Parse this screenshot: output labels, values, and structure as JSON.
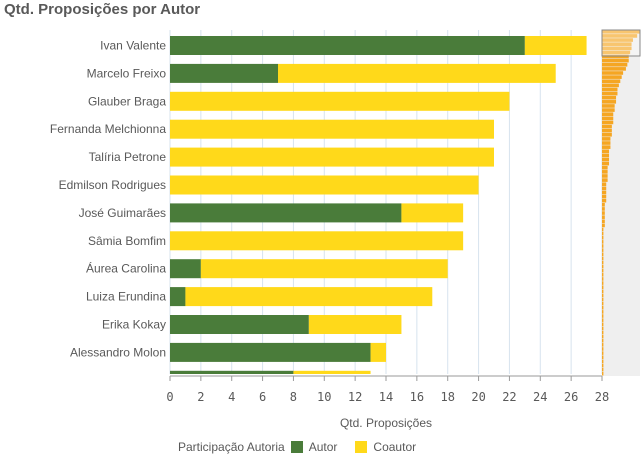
{
  "title": "Qtd. Proposições por Autor",
  "chart_data": {
    "type": "bar",
    "orientation": "horizontal",
    "stacked": true,
    "title": "Qtd. Proposições por Autor",
    "xlabel": "Qtd. Proposições",
    "xlim": [
      0,
      28
    ],
    "xticks": [
      0,
      2,
      4,
      6,
      8,
      10,
      12,
      14,
      16,
      18,
      20,
      22,
      24,
      26,
      28
    ],
    "grid": true,
    "legend_position": "bottom-left",
    "legend_title": "Participação Autoria",
    "categories": [
      "Ivan Valente",
      "Marcelo Freixo",
      "Glauber Braga",
      "Fernanda Melchionna",
      "Talíria Petrone",
      "Edmilson Rodrigues",
      "José Guimarães",
      "Sâmia Bomfim",
      "Áurea Carolina",
      "Luiza Erundina",
      "Erika Kokay",
      "Alessandro Molon"
    ],
    "series": [
      {
        "name": "Autor",
        "color": "#4a7c3a",
        "values": [
          23,
          7,
          0,
          0,
          0,
          0,
          15,
          0,
          2,
          1,
          9,
          13
        ]
      },
      {
        "name": "Coautor",
        "color": "#ffd91a",
        "values": [
          4,
          18,
          22,
          21,
          21,
          20,
          4,
          19,
          16,
          16,
          6,
          1
        ]
      }
    ],
    "partial_next_bar": {
      "Autor": 8,
      "Coautor": 5
    }
  },
  "minimap": {
    "totals": [
      27,
      25,
      22,
      21,
      21,
      20,
      19,
      19,
      18,
      17,
      15,
      14,
      13,
      12,
      11,
      11,
      10,
      10,
      9,
      9,
      8,
      8,
      8,
      7,
      7,
      7,
      6,
      6,
      6,
      5,
      5,
      5,
      5,
      4,
      4,
      4,
      4,
      3,
      3,
      3,
      3,
      3,
      2,
      2,
      2,
      2,
      2,
      2,
      1,
      1,
      1,
      1,
      1,
      1,
      1,
      1,
      1,
      1,
      1,
      1,
      1,
      1,
      1,
      1,
      1,
      1,
      1,
      1,
      1,
      1,
      1,
      1,
      1,
      1,
      1,
      1,
      1,
      1,
      1,
      1,
      1,
      1,
      1,
      1
    ],
    "color": "#f5a623"
  }
}
